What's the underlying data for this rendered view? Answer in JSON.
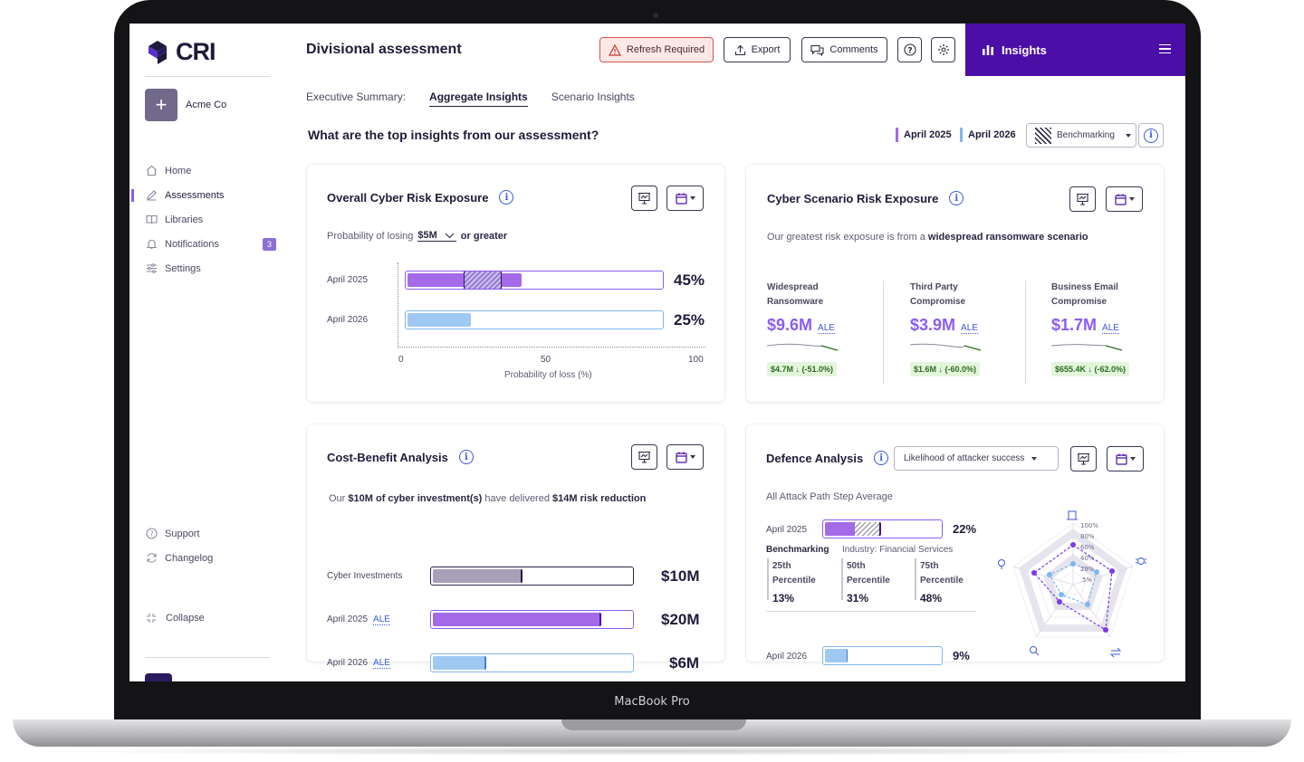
{
  "device": {
    "model": "MacBook Pro"
  },
  "sidebar": {
    "logo_text": "CRI",
    "org": {
      "name": "Acme Co"
    },
    "items": [
      {
        "label": "Home",
        "icon": "home-icon"
      },
      {
        "label": "Assessments",
        "icon": "edit-icon",
        "active": true
      },
      {
        "label": "Libraries",
        "icon": "book-icon"
      },
      {
        "label": "Notifications",
        "icon": "bell-icon",
        "badge": "3"
      },
      {
        "label": "Settings",
        "icon": "sliders-icon"
      }
    ],
    "bottom_items": [
      {
        "label": "Support",
        "icon": "help-icon"
      },
      {
        "label": "Changelog",
        "icon": "refresh-icon"
      }
    ],
    "collapse_label": "Collapse"
  },
  "header": {
    "title": "Divisional assessment",
    "refresh_label": "Refresh Required",
    "export_label": "Export",
    "comments_label": "Comments",
    "insights_label": "Insights"
  },
  "tabs": {
    "prefix": "Executive Summary:",
    "items": [
      "Aggregate Insights",
      "Scenario Insights"
    ],
    "active": "Aggregate Insights"
  },
  "question": "What are the top insights from our assessment?",
  "legend": {
    "a": "April 2025",
    "b": "April 2026"
  },
  "benchmark_select": "Benchmarking",
  "colors": {
    "primary": "#4b0fa8",
    "purple": "#a46ae8",
    "blue": "#7fb6ee",
    "accent": "#8b5cf6",
    "warning": "#d9534f"
  },
  "exposure": {
    "title": "Overall Cyber Risk Exposure",
    "prob_prefix": "Probability of losing",
    "threshold": "$5M",
    "prob_suffix": "or greater",
    "rows": [
      {
        "label": "April 2025",
        "value_text": "45%",
        "value": 45,
        "benchmark_low": 22,
        "benchmark_high": 37
      },
      {
        "label": "April 2026",
        "value_text": "25%",
        "value": 25
      }
    ],
    "ticks": [
      "0",
      "50",
      "100"
    ],
    "xlabel": "Probability of loss (%)"
  },
  "scenario": {
    "title": "Cyber Scenario Risk Exposure",
    "lead_prefix": "Our greatest risk exposure is from a",
    "lead_bold": "widespread ransomware scenario",
    "ale_label": "ALE",
    "items": [
      {
        "name_line1": "Widespread",
        "name_line2": "Ransomware",
        "value": "$9.6M",
        "change": "$4.7M ↓  (-51.0%)"
      },
      {
        "name_line1": "Third Party",
        "name_line2": "Compromise",
        "value": "$3.9M",
        "change": "$1.6M ↓  (-60.0%)"
      },
      {
        "name_line1": "Business Email",
        "name_line2": "Compromise",
        "value": "$1.7M",
        "change": "$655.4K ↓  (-62.0%)"
      }
    ]
  },
  "cost_benefit": {
    "title": "Cost-Benefit Analysis",
    "lead_1": "Our",
    "lead_2": "$10M of cyber investment(s)",
    "lead_3": "have delivered",
    "lead_4": "$14M risk reduction",
    "ale_label": "ALE",
    "rows": [
      {
        "label": "Cyber Investments",
        "value_text": "$10M",
        "fraction": 0.45
      },
      {
        "label": "April 2025",
        "value_text": "$20M",
        "fraction": 0.85,
        "ale": true
      },
      {
        "label": "April 2026",
        "value_text": "$6M",
        "fraction": 0.27,
        "ale": true
      }
    ]
  },
  "defence": {
    "title": "Defence Analysis",
    "dropdown": "Likelihood of attacker success",
    "subtitle": "All Attack Path Step Average",
    "row_a": {
      "label": "April 2025",
      "value_text": "22%",
      "value": 22
    },
    "benchmarking_label": "Benchmarking",
    "industry_label": "Industry: Financial Services",
    "percentiles": [
      {
        "line1": "25th",
        "line2": "Percentile",
        "value": "13%"
      },
      {
        "line1": "50th",
        "line2": "Percentile",
        "value": "31%"
      },
      {
        "line1": "75th",
        "line2": "Percentile",
        "value": "48%"
      }
    ],
    "row_b": {
      "label": "April 2026",
      "value_text": "9%",
      "value": 9
    },
    "radar_levels": [
      "100%",
      "80%",
      "60%",
      "40%",
      "20%",
      "5%"
    ]
  }
}
